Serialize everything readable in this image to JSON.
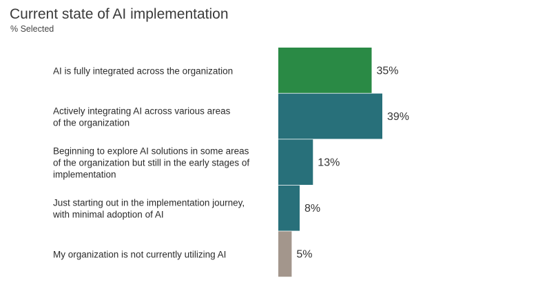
{
  "title": "Current state of AI implementation",
  "subtitle": "% Selected",
  "chart_data": {
    "type": "bar",
    "orientation": "horizontal",
    "title": "Current state of AI implementation",
    "subtitle": "% Selected",
    "categories": [
      [
        "AI is fully integrated across the organization"
      ],
      [
        "Actively integrating AI across various areas",
        "of the organization"
      ],
      [
        "Beginning to explore AI solutions in some areas",
        "of the organization but still in the early stages of",
        "implementation"
      ],
      [
        "Just starting out in the implementation journey,",
        "with minimal adoption of AI"
      ],
      [
        "My organization is not currently utilizing AI"
      ]
    ],
    "values": [
      35,
      39,
      13,
      8,
      5
    ],
    "value_labels": [
      "35%",
      "39%",
      "13%",
      "8%",
      "5%"
    ],
    "bar_colors": [
      "#2a8a45",
      "#28707a",
      "#28707a",
      "#28707a",
      "#a3968c"
    ],
    "xlim": [
      0,
      40
    ],
    "grid": false,
    "legend": "none"
  }
}
